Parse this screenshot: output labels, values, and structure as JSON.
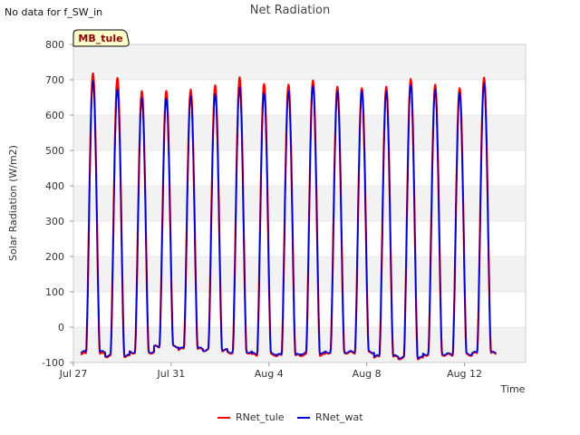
{
  "notice": "No data for f_SW_in",
  "site_badge": "MB_tule",
  "colors": {
    "RNet_tule": "#ff0000",
    "RNet_wat": "#0000cc",
    "band": "#f2f2f2",
    "grid": "#dddddd",
    "badge_fill": "#ffffcc"
  },
  "chart_data": {
    "type": "line",
    "title": "Net Radiation",
    "xlabel": "Time",
    "ylabel": "Solar Radiation (W/m2)",
    "ylim": [
      -100,
      800
    ],
    "yticks": [
      -100,
      0,
      100,
      200,
      300,
      400,
      500,
      600,
      700,
      800
    ],
    "xlim": [
      0,
      18.5
    ],
    "xticks": [
      {
        "label": "Jul 27",
        "value": 0
      },
      {
        "label": "Jul 31",
        "value": 4
      },
      {
        "label": "Aug 4",
        "value": 8
      },
      {
        "label": "Aug 8",
        "value": 12
      },
      {
        "label": "Aug 12",
        "value": 16
      }
    ],
    "day_start": 0.3,
    "days": 17,
    "series": [
      {
        "name": "RNet_tule",
        "peaks": [
          718,
          705,
          668,
          668,
          672,
          684,
          707,
          688,
          686,
          698,
          680,
          676,
          680,
          702,
          686,
          676,
          706
        ],
        "night": [
          -75,
          -82,
          -72,
          -55,
          -62,
          -65,
          -72,
          -78,
          -80,
          -78,
          -72,
          -72,
          -84,
          -88,
          -78,
          -78,
          -74
        ]
      },
      {
        "name": "RNet_wat",
        "peaks": [
          697,
          674,
          648,
          648,
          654,
          660,
          678,
          663,
          668,
          684,
          667,
          670,
          667,
          687,
          672,
          663,
          690
        ],
        "night": [
          -70,
          -80,
          -70,
          -55,
          -60,
          -65,
          -70,
          -75,
          -78,
          -74,
          -70,
          -70,
          -82,
          -86,
          -76,
          -76,
          -72
        ]
      }
    ],
    "legend": [
      "RNet_tule",
      "RNet_wat"
    ],
    "legend_position": "bottom-center"
  }
}
